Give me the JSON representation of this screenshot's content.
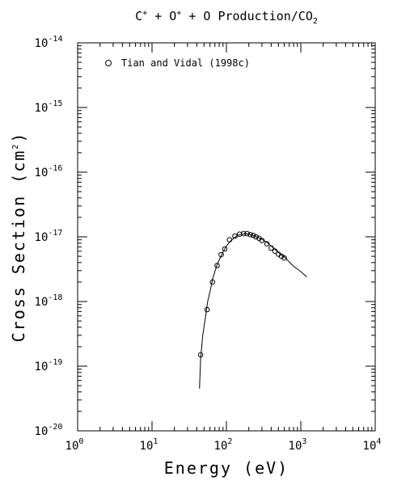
{
  "chart_data": {
    "type": "scatter",
    "title_parts": [
      "C",
      "+",
      " + O",
      "+",
      " + O Production/CO",
      "2"
    ],
    "xlabel": "Energy (eV)",
    "ylabel_parts": [
      "Cross Section (cm",
      "2",
      ")"
    ],
    "x_scale": "log",
    "y_scale": "log",
    "xlim": [
      1,
      10000
    ],
    "ylim": [
      1e-20,
      1e-14
    ],
    "x_ticks": [
      {
        "base": "10",
        "exp": "0"
      },
      {
        "base": "10",
        "exp": "1"
      },
      {
        "base": "10",
        "exp": "2"
      },
      {
        "base": "10",
        "exp": "3"
      },
      {
        "base": "10",
        "exp": "4"
      }
    ],
    "y_ticks": [
      {
        "base": "10",
        "exp": "-20"
      },
      {
        "base": "10",
        "exp": "-19"
      },
      {
        "base": "10",
        "exp": "-18"
      },
      {
        "base": "10",
        "exp": "-17"
      },
      {
        "base": "10",
        "exp": "-16"
      },
      {
        "base": "10",
        "exp": "-15"
      },
      {
        "base": "10",
        "exp": "-14"
      }
    ],
    "grid": false,
    "legend_position": "top-left",
    "series": [
      {
        "name": "Tian and Vidal (1998c)",
        "marker": "circle",
        "x": [
          45,
          55,
          65,
          75,
          85,
          95,
          110,
          130,
          150,
          170,
          190,
          210,
          230,
          250,
          275,
          300,
          350,
          400,
          450,
          500,
          550,
          600
        ],
        "y": [
          1.5e-19,
          7.5e-19,
          2e-18,
          3.6e-18,
          5.3e-18,
          6.5e-18,
          9e-18,
          1.03e-17,
          1.1e-17,
          1.12e-17,
          1.12e-17,
          1.08e-17,
          1.05e-17,
          1e-17,
          9.5e-18,
          8.8e-18,
          7.8e-18,
          6.7e-18,
          6e-18,
          5.4e-18,
          5e-18,
          4.7e-18
        ]
      }
    ],
    "fit_curve": {
      "x": [
        43.5,
        45,
        48,
        52,
        56,
        60,
        65,
        70,
        75,
        80,
        90,
        100,
        110,
        125,
        140,
        160,
        180,
        200,
        225,
        250,
        300,
        350,
        400,
        450,
        500,
        600,
        700,
        800,
        1000,
        1200
      ],
      "y": [
        4.5e-20,
        1.3e-19,
        3e-19,
        5.5e-19,
        1e-18,
        1.4e-18,
        2.2e-18,
        2.9e-18,
        3.7e-18,
        4.4e-18,
        5.8e-18,
        7.2e-18,
        8.3e-18,
        9.5e-18,
        1.05e-17,
        1.1e-17,
        1.12e-17,
        1.1e-17,
        1.06e-17,
        1.01e-17,
        9.2e-18,
        8.2e-18,
        7.2e-18,
        6.4e-18,
        5.7e-18,
        4.9e-18,
        4.1e-18,
        3.5e-18,
        2.9e-18,
        2.4e-18
      ]
    }
  }
}
